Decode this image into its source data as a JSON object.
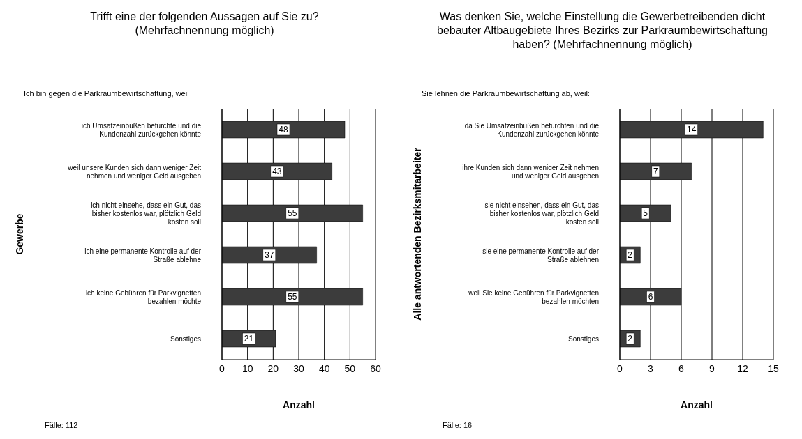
{
  "chart_data": [
    {
      "type": "bar",
      "orientation": "horizontal",
      "title": "Trifft eine der folgenden Aussagen auf Sie zu? (Mehrfachnennung möglich)",
      "subtitle": "Ich bin gegen die Parkraumbewirtschaftung, weil",
      "ylabel": "Gewerbe",
      "xlabel": "Anzahl",
      "categories": [
        "ich Umsatzeinbußen befürchte und die Kundenzahl zurückgehen könnte",
        "weil unsere Kunden sich dann weniger Zeit nehmen und weniger Geld ausgeben",
        "ich nicht einsehe, dass ein Gut, das bisher kostenlos war, plötzlich Geld kosten soll",
        "ich eine permanente Kontrolle auf der Straße ablehne",
        "ich keine Gebühren für Parkvignetten bezahlen möchte",
        "Sonstiges"
      ],
      "values": [
        48,
        43,
        55,
        37,
        55,
        21
      ],
      "color": "#3c3c3c",
      "xlim": [
        0,
        60
      ],
      "xticks": [
        0,
        10,
        20,
        30,
        40,
        50,
        60
      ],
      "grid": "x",
      "data_labels": true,
      "legend": false,
      "annotations": [
        "Fälle: 112"
      ]
    },
    {
      "type": "bar",
      "orientation": "horizontal",
      "title": "Was denken Sie, welche Einstellung die Gewerbetreibenden dicht bebauter Altbaugebiete Ihres Bezirks zur Parkraumbewirtschaftung haben?  (Mehrfachnennung möglich)",
      "subtitle": "Sie lehnen die Parkraumbewirtschaftung ab, weil:",
      "ylabel": "Alle antwortenden Bezirksmitarbeiter",
      "xlabel": "Anzahl",
      "categories": [
        "da Sie Umsatzeinbußen befürchten und die Kundenzahl zurückgehen könnte",
        "ihre Kunden sich dann weniger Zeit nehmen und weniger Geld ausgeben",
        "sie nicht einsehen, dass ein Gut, das bisher kostenlos war, plötzlich Geld kosten soll",
        "sie eine permanente Kontrolle auf der Straße ablehnen",
        "weil Sie keine Gebühren für Parkvignetten bezahlen möchten",
        "Sonstiges"
      ],
      "values": [
        14,
        7,
        5,
        2,
        6,
        2
      ],
      "color": "#3c3c3c",
      "xlim": [
        0,
        15
      ],
      "xticks": [
        0,
        3,
        6,
        9,
        12,
        15
      ],
      "grid": "x",
      "data_labels": true,
      "legend": false,
      "annotations": [
        "Fälle: 16"
      ]
    }
  ]
}
